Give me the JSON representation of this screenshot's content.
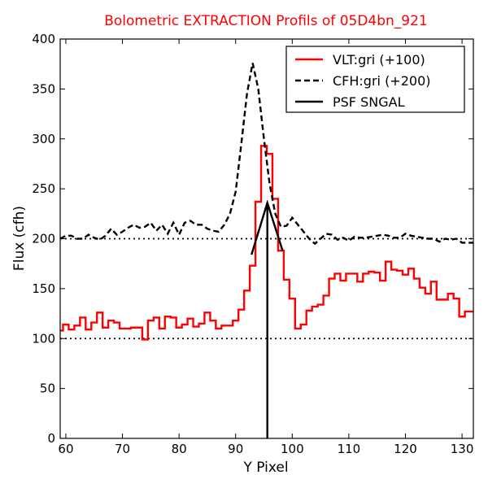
{
  "chart_data": {
    "type": "line",
    "title": "Bolometric EXTRACTION Profils of 05D4bn_921",
    "xlabel": "Y Pixel",
    "ylabel": "Flux (cfh)",
    "xlim": [
      59,
      132
    ],
    "ylim": [
      0,
      400
    ],
    "xticks": [
      60,
      70,
      80,
      90,
      100,
      110,
      120,
      130
    ],
    "yticks": [
      0,
      50,
      100,
      150,
      200,
      250,
      300,
      350,
      400
    ],
    "legend_position": "top-right",
    "grid": false,
    "reference_lines": [
      100,
      200
    ],
    "series": [
      {
        "name": "VLT:gri (+100)",
        "color": "#ff0000",
        "style": "steps",
        "x": [
          59,
          60,
          61,
          62,
          63,
          64,
          65,
          66,
          67,
          68,
          69,
          70,
          71,
          72,
          73,
          74,
          75,
          76,
          77,
          78,
          79,
          80,
          81,
          82,
          83,
          84,
          85,
          86,
          87,
          88,
          89,
          90,
          91,
          92,
          93,
          94,
          95,
          96,
          97,
          98,
          99,
          100,
          101,
          102,
          103,
          104,
          105,
          106,
          107,
          108,
          109,
          110,
          111,
          112,
          113,
          114,
          115,
          116,
          117,
          118,
          119,
          120,
          121,
          122,
          123,
          124,
          125,
          126,
          127,
          128,
          129,
          130,
          131,
          132
        ],
        "y": [
          108,
          114,
          109,
          113,
          121,
          109,
          116,
          126,
          111,
          118,
          116,
          110,
          110,
          111,
          111,
          99,
          118,
          121,
          110,
          122,
          121,
          111,
          114,
          120,
          112,
          115,
          126,
          118,
          110,
          113,
          113,
          118,
          129,
          148,
          173,
          237,
          293,
          285,
          240,
          188,
          159,
          140,
          110,
          114,
          128,
          132,
          134,
          143,
          160,
          165,
          158,
          165,
          165,
          157,
          165,
          167,
          166,
          158,
          177,
          169,
          168,
          164,
          170,
          160,
          151,
          145,
          157,
          139,
          139,
          145,
          140,
          122,
          127,
          127
        ]
      },
      {
        "name": "CFH:gri (+200)",
        "color": "#000000",
        "style": "dashed",
        "x": [
          59,
          60,
          61,
          62,
          63,
          64,
          65,
          66,
          67,
          68,
          69,
          70,
          71,
          72,
          73,
          74,
          75,
          76,
          77,
          78,
          79,
          80,
          81,
          82,
          83,
          84,
          85,
          86,
          87,
          88,
          89,
          90,
          91,
          92,
          93,
          94,
          95,
          96,
          97,
          98,
          99,
          100,
          101,
          102,
          103,
          104,
          105,
          106,
          107,
          108,
          109,
          110,
          111,
          112,
          113,
          114,
          115,
          116,
          117,
          118,
          119,
          120,
          121,
          122,
          123,
          124,
          125,
          126,
          127,
          128,
          129,
          130,
          131,
          132
        ],
        "y": [
          200,
          203,
          203,
          200,
          200,
          204,
          201,
          199,
          203,
          210,
          204,
          207,
          211,
          214,
          211,
          212,
          216,
          208,
          214,
          205,
          216,
          204,
          216,
          218,
          214,
          214,
          210,
          208,
          207,
          214,
          225,
          247,
          295,
          345,
          376,
          350,
          300,
          255,
          225,
          212,
          213,
          221,
          214,
          207,
          200,
          195,
          200,
          205,
          204,
          199,
          201,
          198,
          202,
          201,
          201,
          202,
          203,
          204,
          203,
          201,
          201,
          205,
          203,
          202,
          201,
          200,
          200,
          197,
          200,
          199,
          200,
          196,
          196,
          196
        ]
      },
      {
        "name": "PSF SNGAL",
        "color": "#000000",
        "style": "solid",
        "x": [
          92.8,
          95.6,
          98.3
        ],
        "y": [
          184,
          236,
          188
        ],
        "vertical_marker_x": 95.6
      }
    ]
  }
}
